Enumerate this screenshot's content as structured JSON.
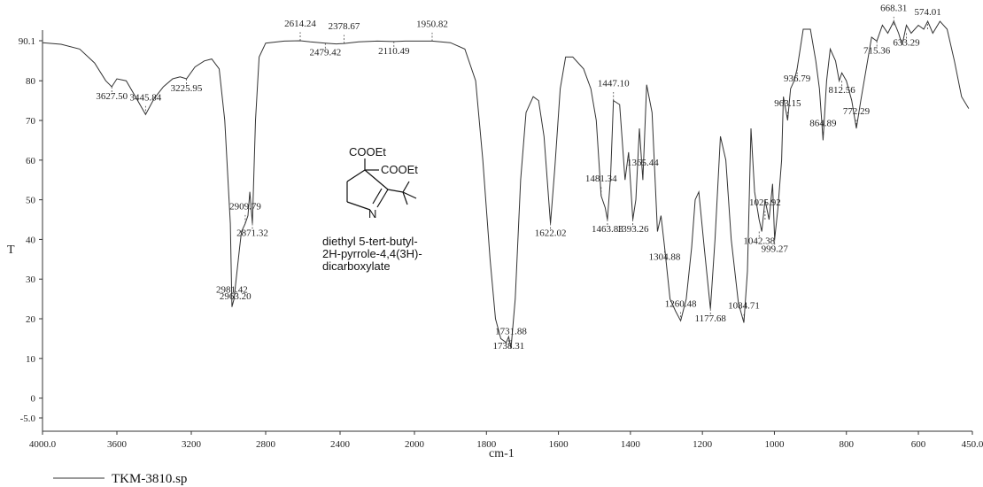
{
  "chart_data": {
    "type": "line",
    "xlabel": "cm-1",
    "ylabel": "T",
    "xlim": [
      4000.0,
      450.0
    ],
    "ylim": [
      -5.0,
      90.1
    ],
    "grid": false,
    "x_ticks": [
      {
        "value": 4000,
        "label": "4000.0"
      },
      {
        "value": 3600,
        "label": "3600"
      },
      {
        "value": 3200,
        "label": "3200"
      },
      {
        "value": 2800,
        "label": "2800"
      },
      {
        "value": 2400,
        "label": "2400"
      },
      {
        "value": 2000,
        "label": "2000"
      },
      {
        "value": 1800,
        "label": "1800"
      },
      {
        "value": 1600,
        "label": "1600"
      },
      {
        "value": 1400,
        "label": "1400"
      },
      {
        "value": 1200,
        "label": "1200"
      },
      {
        "value": 1000,
        "label": "1000"
      },
      {
        "value": 800,
        "label": "800"
      },
      {
        "value": 600,
        "label": "600"
      },
      {
        "value": 450,
        "label": "450.0"
      }
    ],
    "y_ticks": [
      {
        "value": 90.1,
        "label": "90.1"
      },
      {
        "value": 80,
        "label": "80"
      },
      {
        "value": 70,
        "label": "70"
      },
      {
        "value": 60,
        "label": "60"
      },
      {
        "value": 50,
        "label": "50"
      },
      {
        "value": 40,
        "label": "40"
      },
      {
        "value": 30,
        "label": "30"
      },
      {
        "value": 20,
        "label": "20"
      },
      {
        "value": 10,
        "label": "10"
      },
      {
        "value": 0,
        "label": "0"
      },
      {
        "value": -5.0,
        "label": "-5.0"
      }
    ],
    "series": [
      {
        "name": "TKM-3810.sp",
        "x": [
          4000,
          3900,
          3800,
          3720,
          3660,
          3627.5,
          3600,
          3550,
          3500,
          3445.84,
          3400,
          3350,
          3300,
          3260,
          3225.95,
          3180,
          3130,
          3090,
          3050,
          3020,
          2990,
          2981.42,
          2970,
          2963.2,
          2940,
          2930,
          2909.79,
          2895,
          2885,
          2871.32,
          2855,
          2835,
          2800,
          2700,
          2614.24,
          2560,
          2479.42,
          2420,
          2378.67,
          2300,
          2200,
          2110.49,
          2050,
          1950.82,
          1900,
          1860,
          1830,
          1810,
          1790,
          1775,
          1760,
          1745,
          1738.31,
          1731.88,
          1720,
          1705,
          1690,
          1670,
          1655,
          1640,
          1622.02,
          1610,
          1595,
          1580,
          1560,
          1530,
          1510,
          1495,
          1481.34,
          1470,
          1463.83,
          1455,
          1447.1,
          1430,
          1415,
          1405,
          1393.26,
          1385,
          1375,
          1365.44,
          1355,
          1340,
          1325,
          1315,
          1304.88,
          1290,
          1275,
          1260.48,
          1245,
          1230,
          1220,
          1210,
          1195,
          1177.68,
          1165,
          1150,
          1135,
          1120,
          1100,
          1084.71,
          1075,
          1065,
          1055,
          1042.38,
          1035,
          1025.92,
          1015,
          1005,
          999.27,
          990,
          980,
          975,
          963.15,
          955,
          945,
          936.79,
          920,
          900,
          885,
          875,
          864.89,
          855,
          845,
          830,
          820,
          812.56,
          800,
          785,
          772.29,
          760,
          745,
          730,
          715.36,
          700,
          685,
          668.31,
          655,
          645,
          633.29,
          620,
          600,
          585,
          574.01,
          560,
          540,
          520,
          500,
          480,
          460
        ],
        "values": [
          89.6,
          89.2,
          88.0,
          84.5,
          80.0,
          78.5,
          80.5,
          80.0,
          76.0,
          71.5,
          75.5,
          78.5,
          80.5,
          81.0,
          80.5,
          83.5,
          85.0,
          85.5,
          83.0,
          70.0,
          44.0,
          23.0,
          25.0,
          28.0,
          38.0,
          42.0,
          44.0,
          46.0,
          52.0,
          44.0,
          70.0,
          86.0,
          89.5,
          90.0,
          90.1,
          89.8,
          89.5,
          89.3,
          89.4,
          89.8,
          90.0,
          89.9,
          90.0,
          90.0,
          89.6,
          88.0,
          80.0,
          60.0,
          35.0,
          20.0,
          15.0,
          14.0,
          15.5,
          12.5,
          25.0,
          55.0,
          72.0,
          76.0,
          75.0,
          66.0,
          44.0,
          58.0,
          78.0,
          86.0,
          86.0,
          83.0,
          78.0,
          70.0,
          51.0,
          48.0,
          45.0,
          56.0,
          75.0,
          74.0,
          55.0,
          62.0,
          45.0,
          50.0,
          68.0,
          55.0,
          79.0,
          72.0,
          42.0,
          46.0,
          38.0,
          25.0,
          22.0,
          19.5,
          25.0,
          38.0,
          50.0,
          52.0,
          38.0,
          22.5,
          40.0,
          66.0,
          60.0,
          40.0,
          24.0,
          19.0,
          32.0,
          68.0,
          52.0,
          45.0,
          42.0,
          50.0,
          45.0,
          54.0,
          40.0,
          48.0,
          60.0,
          76.0,
          70.0,
          78.0,
          80.0,
          83.0,
          93.0,
          93.0,
          85.0,
          78.0,
          65.0,
          80.0,
          88.0,
          85.0,
          80.0,
          82.0,
          80.0,
          75.0,
          68.0,
          75.0,
          83.0,
          91.0,
          90.0,
          94.0,
          92.0,
          95.0,
          92.0,
          89.0,
          94.0,
          92.0,
          94.0,
          93.0,
          95.0,
          92.0,
          95.0,
          93.0,
          85.0,
          76.0,
          73.0
        ]
      }
    ],
    "peak_annotations": [
      {
        "x": 3627.5,
        "y": 78.5,
        "label": "3627.50"
      },
      {
        "x": 3445.84,
        "y": 71.5,
        "label": "3445.84"
      },
      {
        "x": 3225.95,
        "y": 80.5,
        "label": "3225.95"
      },
      {
        "x": 2981.42,
        "y": 23.0,
        "label": "2981.42"
      },
      {
        "x": 2963.2,
        "y": 28.0,
        "label": "2963.20"
      },
      {
        "x": 2909.79,
        "y": 44.0,
        "label": "2909.79"
      },
      {
        "x": 2871.32,
        "y": 44.0,
        "label": "2871.32"
      },
      {
        "x": 2614.24,
        "y": 90.1,
        "label": "2614.24"
      },
      {
        "x": 2479.42,
        "y": 89.5,
        "label": "2479.42"
      },
      {
        "x": 2378.67,
        "y": 89.4,
        "label": "2378.67"
      },
      {
        "x": 2110.49,
        "y": 89.9,
        "label": "2110.49"
      },
      {
        "x": 1950.82,
        "y": 90.0,
        "label": "1950.82"
      },
      {
        "x": 1738.31,
        "y": 15.5,
        "label": "1738.31"
      },
      {
        "x": 1731.88,
        "y": 12.5,
        "label": "1731.88"
      },
      {
        "x": 1622.02,
        "y": 44.0,
        "label": "1622.02"
      },
      {
        "x": 1481.34,
        "y": 51.0,
        "label": "1481.34"
      },
      {
        "x": 1463.83,
        "y": 45.0,
        "label": "1463.83"
      },
      {
        "x": 1447.1,
        "y": 75.0,
        "label": "1447.10"
      },
      {
        "x": 1393.26,
        "y": 45.0,
        "label": "1393.26"
      },
      {
        "x": 1365.44,
        "y": 55.0,
        "label": "1365.44"
      },
      {
        "x": 1304.88,
        "y": 38.0,
        "label": "1304.88"
      },
      {
        "x": 1260.48,
        "y": 19.5,
        "label": "1260.48"
      },
      {
        "x": 1177.68,
        "y": 22.5,
        "label": "1177.68"
      },
      {
        "x": 1084.71,
        "y": 19.0,
        "label": "1084.71"
      },
      {
        "x": 1042.38,
        "y": 42.0,
        "label": "1042.38"
      },
      {
        "x": 1025.92,
        "y": 45.0,
        "label": "1025.92"
      },
      {
        "x": 999.27,
        "y": 40.0,
        "label": "999.27"
      },
      {
        "x": 963.15,
        "y": 70.0,
        "label": "963.15"
      },
      {
        "x": 936.79,
        "y": 83.0,
        "label": "936.79"
      },
      {
        "x": 864.89,
        "y": 65.0,
        "label": "864.89"
      },
      {
        "x": 812.56,
        "y": 80.0,
        "label": "812.56"
      },
      {
        "x": 772.29,
        "y": 68.0,
        "label": "772.29"
      },
      {
        "x": 715.36,
        "y": 90.0,
        "label": "715.36"
      },
      {
        "x": 668.31,
        "y": 94.0,
        "label": "668.31"
      },
      {
        "x": 633.29,
        "y": 92.0,
        "label": "633.29"
      },
      {
        "x": 574.01,
        "y": 93.0,
        "label": "574.01"
      }
    ]
  },
  "structure": {
    "substituent_top": "COOEt",
    "substituent_mid": "COOEt",
    "ring_atom": "N",
    "compound_name_lines": [
      "diethyl 5-tert-butyl-",
      "2H-pyrrole-4,4(3H)-",
      "dicarboxylate"
    ]
  },
  "legend": {
    "label": "TKM-3810.sp"
  }
}
